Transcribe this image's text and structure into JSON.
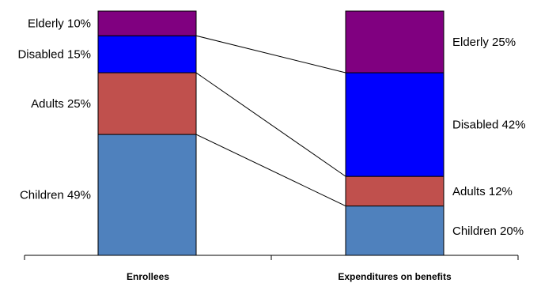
{
  "chart_data": {
    "type": "bar",
    "stacked": true,
    "percent_stacked": true,
    "categories": [
      "Enrollees",
      "Expenditures on benefits"
    ],
    "series": [
      {
        "name": "Children",
        "color": "#4F81BD",
        "values": [
          49,
          20
        ],
        "labels": [
          "Children 49%",
          "Children 20%"
        ]
      },
      {
        "name": "Adults",
        "color": "#C0504D",
        "values": [
          25,
          12
        ],
        "labels": [
          "Adults 25%",
          "Adults 12%"
        ]
      },
      {
        "name": "Disabled",
        "color": "#0000FF",
        "values": [
          15,
          42
        ],
        "labels": [
          "Disabled 15%",
          "Disabled 42%"
        ]
      },
      {
        "name": "Elderly",
        "color": "#800080",
        "values": [
          10,
          25
        ],
        "labels": [
          "Elderly 10%",
          "Elderly 25%"
        ]
      }
    ],
    "connector_lines": true,
    "legend": "none",
    "grid": false
  }
}
